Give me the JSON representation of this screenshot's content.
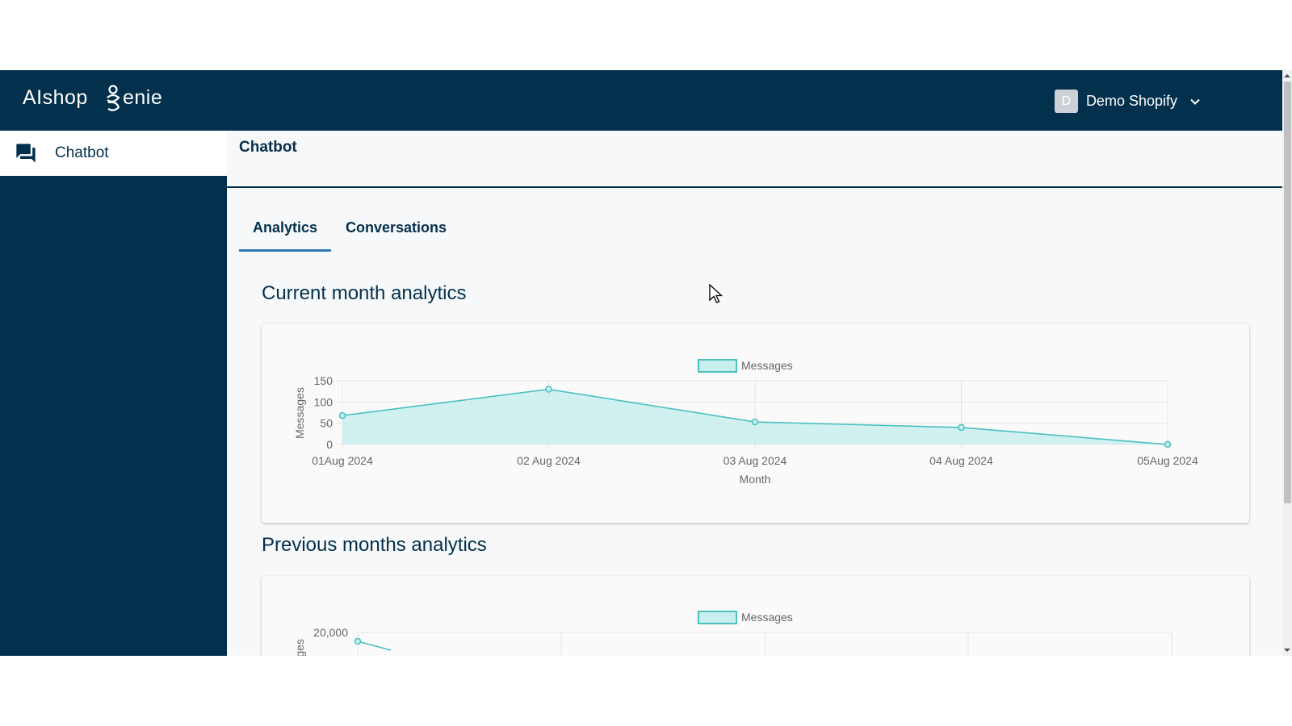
{
  "brand": {
    "logo_text": "AIshopGenie"
  },
  "sidebar": {
    "items": [
      {
        "label": "Chatbot",
        "icon": "chat-bubbles-icon",
        "active": true
      }
    ]
  },
  "header": {
    "user_initial": "D",
    "user_name": "Demo Shopify"
  },
  "main": {
    "page_title": "Chatbot",
    "tabs": [
      {
        "label": "Analytics",
        "active": true
      },
      {
        "label": "Conversations",
        "active": false
      }
    ],
    "sections": [
      {
        "title": "Current month analytics"
      },
      {
        "title": "Previous months analytics"
      }
    ]
  },
  "colors": {
    "navy": "#03304d",
    "tab_underline": "#2f79b7",
    "series_line": "#4bc0c0",
    "series_fill": "#c9eeee"
  },
  "chart_data": [
    {
      "type": "area",
      "x": [
        "01Aug 2024",
        "02 Aug 2024",
        "03 Aug 2024",
        "04 Aug 2024",
        "05Aug 2024"
      ],
      "series": [
        {
          "name": "Messages",
          "values": [
            68,
            130,
            53,
            40,
            0
          ]
        }
      ],
      "xlabel": "Month",
      "ylabel": "Messages",
      "ylim": [
        0,
        150
      ],
      "yticks": [
        0,
        50,
        100,
        150
      ],
      "legend": "top-center",
      "grid": true
    },
    {
      "type": "area",
      "x": [],
      "series": [
        {
          "name": "Messages",
          "values": []
        }
      ],
      "ylabel": "Messages",
      "yticks_visible": [
        "20,000"
      ],
      "legend": "top-center",
      "grid": true,
      "partially_visible": true
    }
  ]
}
